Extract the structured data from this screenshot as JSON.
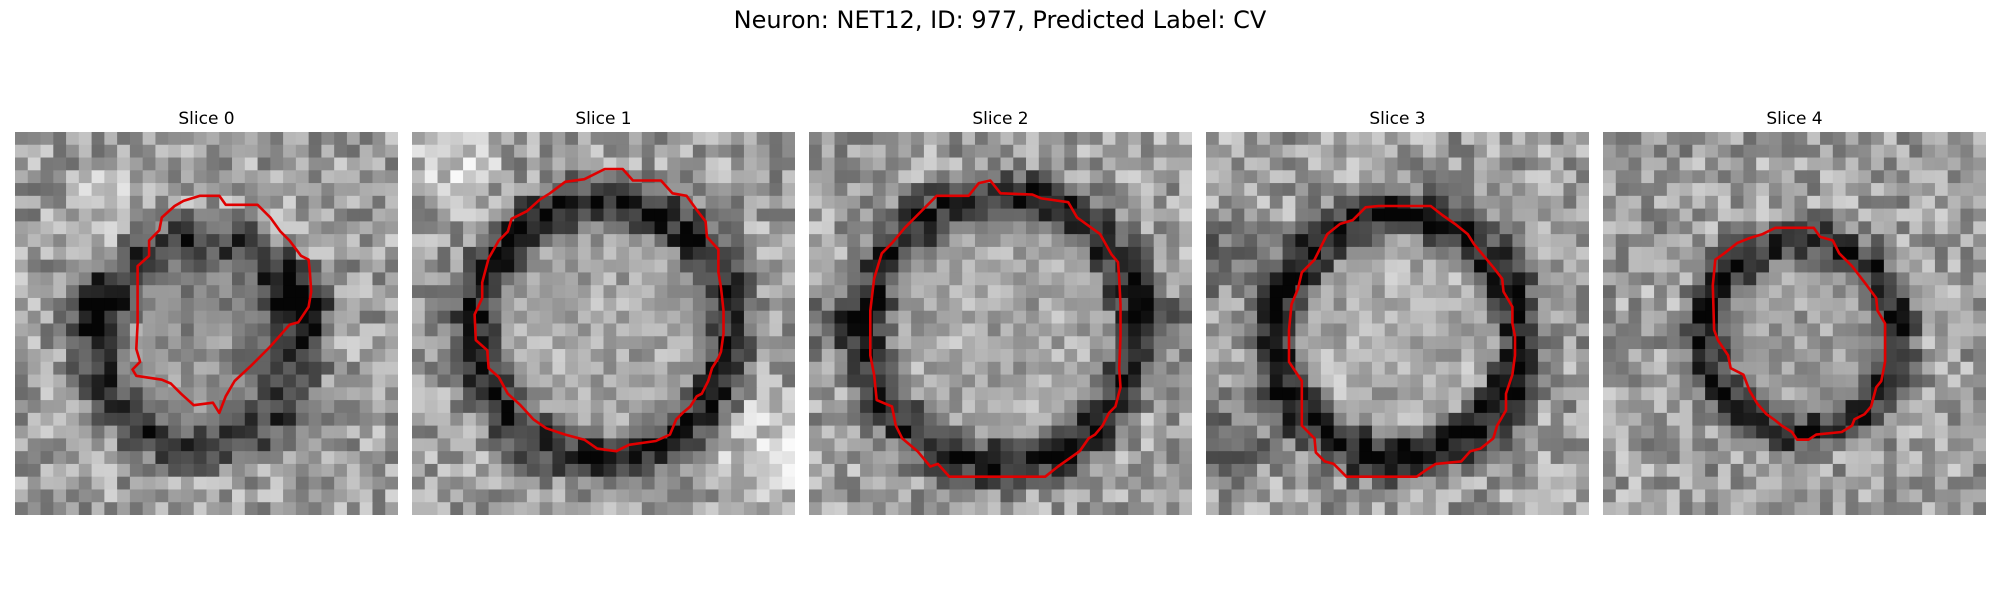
{
  "figure": {
    "title": "Neuron: NET12, ID: 977, Predicted Label: CV"
  },
  "panels": [
    {
      "title": "Slice 0"
    },
    {
      "title": "Slice 1"
    },
    {
      "title": "Slice 2"
    },
    {
      "title": "Slice 3"
    },
    {
      "title": "Slice 4"
    }
  ],
  "colors": {
    "contour": "#e00000",
    "background": "#ffffff"
  }
}
